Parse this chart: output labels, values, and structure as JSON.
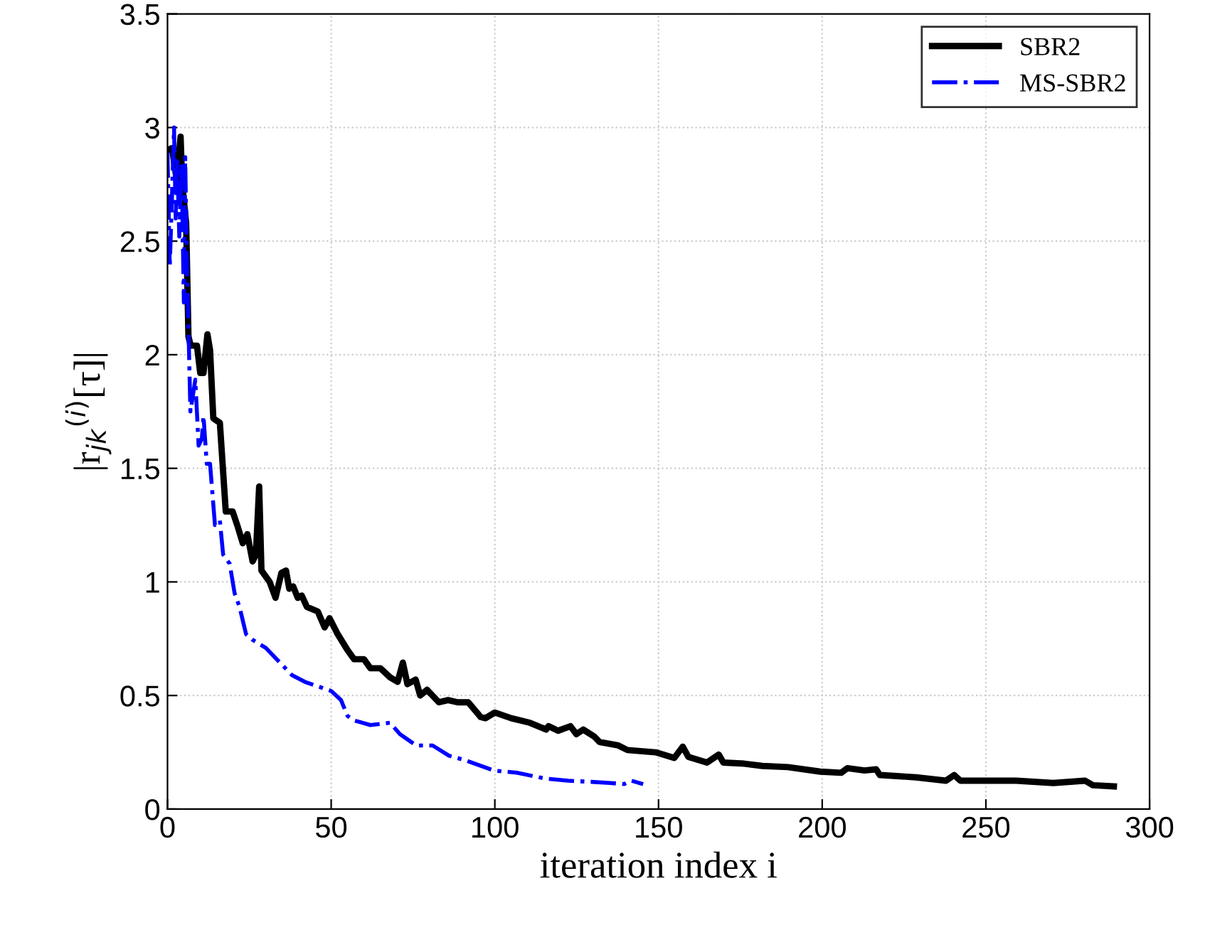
{
  "chart_data": {
    "type": "line",
    "xlabel": "iteration index i",
    "ylabel": "|r$_{jk}$$^{(i)}$[τ]|",
    "xlim": [
      0,
      300
    ],
    "xticks": [
      0,
      50,
      100,
      150,
      200,
      250,
      300
    ],
    "ylim": [
      0,
      3.5
    ],
    "yticks": [
      0,
      0.5,
      1,
      1.5,
      2,
      2.5,
      3,
      3.5
    ],
    "grid": true,
    "legend": "top right",
    "marker": "none",
    "series": [
      {
        "name": "SBR2",
        "color": "#000000",
        "line_style": "solid",
        "x": [
          0,
          1.4,
          2.8,
          4,
          4.5,
          5.7,
          6.4,
          7.1,
          9,
          10,
          11,
          12.2,
          13,
          14,
          16,
          17.8,
          19.9,
          21.3,
          23,
          24.4,
          26,
          27,
          28,
          28.7,
          31.2,
          33,
          34.8,
          36.2,
          37.2,
          38.4,
          39.8,
          41,
          42.6,
          45.9,
          48,
          49.5,
          52,
          55,
          57,
          60,
          62,
          65,
          68,
          70.3,
          71.9,
          73.3,
          75.8,
          77.2,
          79.3,
          82.9,
          85.7,
          88.6,
          91.9,
          95.7,
          97.1,
          100,
          105,
          110.7,
          115.7,
          116.4,
          119.3,
          123.1,
          124.9,
          127,
          130.3,
          132,
          137.7,
          140.5,
          149.1,
          154.8,
          157.4,
          159.1,
          164.8,
          168.4,
          169.8,
          176.2,
          181.7,
          189.5,
          199.4,
          205.8,
          207.7,
          212.9,
          216.5,
          217.6,
          228.6,
          237.8,
          240.3,
          242.2,
          250.7,
          259.2,
          270.6,
          280.3,
          282.7,
          289.1
        ],
        "values": [
          2.9,
          2.91,
          2.77,
          2.96,
          2.75,
          2.58,
          2.08,
          2.04,
          2.04,
          1.92,
          1.92,
          2.09,
          2.02,
          1.72,
          1.7,
          1.31,
          1.31,
          1.25,
          1.17,
          1.21,
          1.09,
          1.12,
          1.42,
          1.05,
          1.0,
          0.93,
          1.04,
          1.05,
          0.97,
          0.98,
          0.93,
          0.94,
          0.89,
          0.87,
          0.8,
          0.84,
          0.77,
          0.7,
          0.66,
          0.66,
          0.62,
          0.62,
          0.58,
          0.56,
          0.645,
          0.55,
          0.57,
          0.5,
          0.525,
          0.47,
          0.48,
          0.47,
          0.47,
          0.405,
          0.4,
          0.425,
          0.4,
          0.38,
          0.35,
          0.365,
          0.345,
          0.365,
          0.33,
          0.35,
          0.32,
          0.295,
          0.28,
          0.26,
          0.25,
          0.225,
          0.275,
          0.23,
          0.205,
          0.24,
          0.205,
          0.2,
          0.19,
          0.185,
          0.165,
          0.16,
          0.18,
          0.17,
          0.175,
          0.15,
          0.14,
          0.125,
          0.15,
          0.125,
          0.125,
          0.125,
          0.115,
          0.125,
          0.105,
          0.1
        ]
      },
      {
        "name": "MS-SBR2",
        "color": "#0000ff",
        "line_style": "dashdot",
        "x": [
          0,
          0.7,
          1.4,
          2,
          2.5,
          3,
          3.6,
          4.3,
          5,
          5.4,
          6,
          6.5,
          7,
          8.5,
          9.5,
          10.5,
          11,
          12,
          13,
          14.5,
          16,
          17,
          19,
          20.5,
          22,
          23,
          24,
          26,
          30,
          34,
          38,
          42,
          46,
          50,
          53,
          55,
          57,
          62,
          68,
          71,
          76,
          81,
          86,
          91,
          99.6,
          106.7,
          115.2,
          122.4,
          129.5,
          135.2,
          139.5,
          141.7,
          145.3
        ],
        "values": [
          2.89,
          2.39,
          2.71,
          3.0,
          2.6,
          2.85,
          2.52,
          2.83,
          2.23,
          2.87,
          2.35,
          2.06,
          1.75,
          1.89,
          1.6,
          1.63,
          1.73,
          1.52,
          1.52,
          1.25,
          1.27,
          1.12,
          1.08,
          0.95,
          0.89,
          0.83,
          0.77,
          0.745,
          0.71,
          0.65,
          0.59,
          0.56,
          0.54,
          0.52,
          0.48,
          0.41,
          0.39,
          0.37,
          0.38,
          0.33,
          0.28,
          0.28,
          0.235,
          0.215,
          0.17,
          0.16,
          0.135,
          0.125,
          0.12,
          0.115,
          0.11,
          0.125,
          0.11
        ]
      }
    ]
  }
}
